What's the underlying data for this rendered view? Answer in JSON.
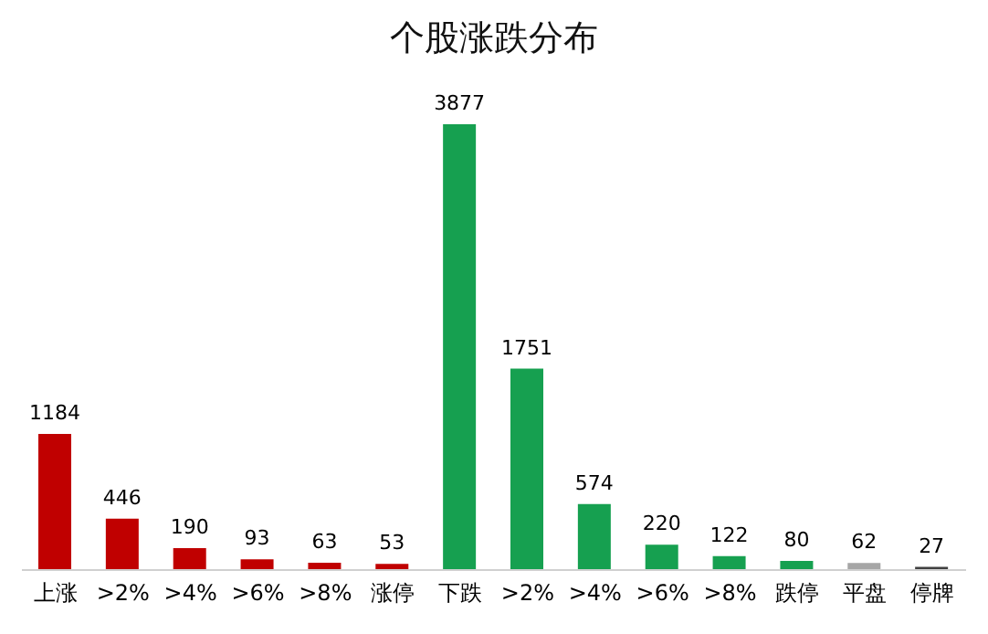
{
  "chart_data": {
    "type": "bar",
    "title": "个股涨跌分布",
    "categories": [
      "上涨",
      ">2%",
      ">4%",
      ">6%",
      ">8%",
      "涨停",
      "下跌",
      ">2%",
      ">4%",
      ">6%",
      ">8%",
      "跌停",
      "平盘",
      "停牌"
    ],
    "values": [
      1184,
      446,
      190,
      93,
      63,
      53,
      3877,
      1751,
      574,
      220,
      122,
      80,
      62,
      27
    ],
    "colors": [
      "#c00000",
      "#c00000",
      "#c00000",
      "#c00000",
      "#c00000",
      "#c00000",
      "#16a050",
      "#16a050",
      "#16a050",
      "#16a050",
      "#16a050",
      "#16a050",
      "#a6a6a6",
      "#404040"
    ],
    "data_labels": true,
    "grid": false,
    "legend": false
  }
}
